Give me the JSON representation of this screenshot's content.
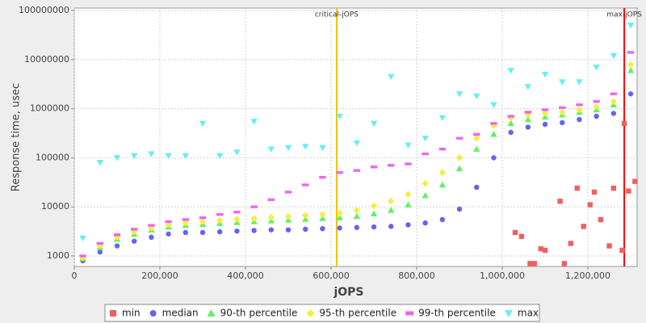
{
  "chart_data": {
    "type": "scatter",
    "x_label": "jOPS",
    "y_label": "Response time, usec",
    "log_y": true,
    "grid": true,
    "legend": "bottom",
    "xlim": [
      0,
      1315000
    ],
    "ylim": [
      610,
      112000000
    ],
    "xticks": [
      0,
      {
        "value": 200000,
        "label": "200,000"
      },
      {
        "value": 400000,
        "label": "400,000"
      },
      {
        "value": 600000,
        "label": "600,000"
      },
      {
        "value": 800000,
        "label": "800,000"
      },
      {
        "value": 1000000,
        "label": "1,000,000"
      },
      {
        "value": 1200000,
        "label": "1,200,000"
      }
    ],
    "yticks": [
      1000,
      10000,
      100000,
      1000000,
      10000000,
      100000000
    ],
    "vlines": [
      {
        "label": "critical-jOPS",
        "value": 613000,
        "color": "#f0c000"
      },
      {
        "label": "max-jOPS",
        "value": 1285000,
        "color": "#ff0000"
      }
    ],
    "series": [
      {
        "name": "min",
        "color": "#f06060",
        "marker": "square",
        "x": [
          1030000,
          1045000,
          1065000,
          1075000,
          1090000,
          1100000,
          1135000,
          1145000,
          1160000,
          1175000,
          1190000,
          1205000,
          1215000,
          1230000,
          1250000,
          1260000,
          1280000,
          1285000,
          1295000,
          1310000
        ],
        "values": [
          3000,
          2500,
          700,
          700,
          1400,
          1300,
          13000,
          700,
          1800,
          24000,
          4000,
          11000,
          20000,
          5500,
          1600,
          24000,
          1300,
          500000,
          21000,
          33000
        ]
      },
      {
        "name": "median",
        "color": "#6464f0",
        "marker": "circle",
        "x": [
          20000,
          60000,
          100000,
          140000,
          180000,
          220000,
          260000,
          300000,
          340000,
          380000,
          420000,
          460000,
          500000,
          540000,
          580000,
          620000,
          660000,
          700000,
          740000,
          780000,
          820000,
          860000,
          900000,
          940000,
          980000,
          1020000,
          1060000,
          1100000,
          1140000,
          1180000,
          1220000,
          1260000,
          1300000
        ],
        "values": [
          800,
          1200,
          1600,
          2000,
          2400,
          2800,
          3000,
          3000,
          3100,
          3200,
          3300,
          3400,
          3400,
          3500,
          3600,
          3700,
          3800,
          3900,
          4000,
          4300,
          4700,
          5500,
          9000,
          25000,
          100000,
          330000,
          420000,
          480000,
          520000,
          600000,
          700000,
          800000,
          2000000
        ]
      },
      {
        "name": "90-th percentile",
        "color": "#64f064",
        "marker": "triangle",
        "x": [
          20000,
          60000,
          100000,
          140000,
          180000,
          220000,
          260000,
          300000,
          340000,
          380000,
          420000,
          460000,
          500000,
          540000,
          580000,
          620000,
          660000,
          700000,
          740000,
          780000,
          820000,
          860000,
          900000,
          940000,
          980000,
          1020000,
          1060000,
          1100000,
          1140000,
          1180000,
          1220000,
          1260000,
          1300000
        ],
        "values": [
          900,
          1500,
          2200,
          2800,
          3400,
          3900,
          4200,
          4400,
          4600,
          4800,
          5000,
          5200,
          5400,
          5600,
          5800,
          6000,
          6400,
          7200,
          8500,
          11000,
          17000,
          28000,
          60000,
          150000,
          300000,
          500000,
          600000,
          680000,
          750000,
          850000,
          950000,
          1200000,
          6000000
        ]
      },
      {
        "name": "95-th percentile",
        "color": "#f0f040",
        "marker": "diamond",
        "x": [
          20000,
          60000,
          100000,
          140000,
          180000,
          220000,
          260000,
          300000,
          340000,
          380000,
          420000,
          460000,
          500000,
          540000,
          580000,
          620000,
          660000,
          700000,
          740000,
          780000,
          820000,
          860000,
          900000,
          940000,
          980000,
          1020000,
          1060000,
          1100000,
          1140000,
          1180000,
          1220000,
          1260000,
          1300000
        ],
        "values": [
          900,
          1600,
          2400,
          3100,
          3700,
          4300,
          4700,
          5000,
          5300,
          5600,
          5800,
          6100,
          6400,
          6700,
          7000,
          7500,
          8500,
          10500,
          13000,
          18000,
          30000,
          50000,
          100000,
          250000,
          450000,
          650000,
          750000,
          800000,
          850000,
          950000,
          1100000,
          1400000,
          8000000
        ]
      },
      {
        "name": "99-th percentile",
        "color": "#f064f0",
        "marker": "rect",
        "x": [
          20000,
          60000,
          100000,
          140000,
          180000,
          220000,
          260000,
          300000,
          340000,
          380000,
          420000,
          460000,
          500000,
          540000,
          580000,
          620000,
          660000,
          700000,
          740000,
          780000,
          820000,
          860000,
          900000,
          940000,
          980000,
          1020000,
          1060000,
          1100000,
          1140000,
          1180000,
          1220000,
          1260000,
          1300000
        ],
        "values": [
          1000,
          1800,
          2700,
          3500,
          4200,
          5000,
          5500,
          6000,
          7000,
          7800,
          10000,
          14000,
          20000,
          28000,
          40000,
          50000,
          55000,
          65000,
          70000,
          75000,
          120000,
          150000,
          250000,
          300000,
          500000,
          700000,
          850000,
          950000,
          1050000,
          1200000,
          1400000,
          2000000,
          14000000
        ]
      },
      {
        "name": "max",
        "color": "#64f0f0",
        "marker": "down",
        "x": [
          20000,
          60000,
          100000,
          140000,
          180000,
          220000,
          260000,
          300000,
          340000,
          380000,
          420000,
          460000,
          500000,
          540000,
          580000,
          620000,
          660000,
          700000,
          740000,
          780000,
          820000,
          860000,
          900000,
          940000,
          980000,
          1020000,
          1060000,
          1100000,
          1140000,
          1180000,
          1220000,
          1260000,
          1300000
        ],
        "values": [
          2300,
          80000,
          100000,
          110000,
          120000,
          110000,
          110000,
          500000,
          110000,
          130000,
          550000,
          150000,
          160000,
          170000,
          160000,
          700000,
          200000,
          500000,
          4500000,
          180000,
          250000,
          650000,
          2000000,
          1800000,
          1200000,
          6000000,
          2800000,
          5000000,
          3500000,
          3500000,
          7000000,
          12000000,
          50000000
        ]
      }
    ]
  }
}
